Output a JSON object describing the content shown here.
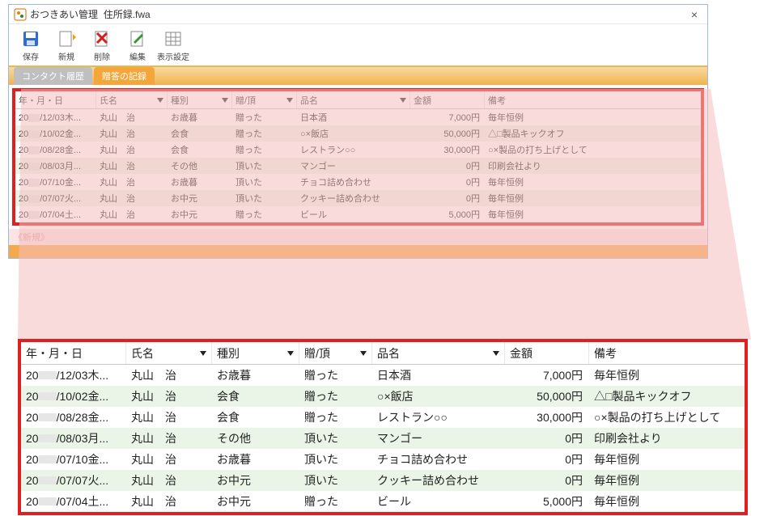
{
  "window": {
    "app_title": "おつきあい管理",
    "doc_title": "住所録.fwa"
  },
  "toolbar": {
    "save": "保存",
    "new": "新規",
    "delete": "削除",
    "edit": "編集",
    "view": "表示設定"
  },
  "tabs": {
    "contact_history": "コンタクト履歴",
    "gift_record": "贈答の記録"
  },
  "columns": {
    "date": "年・月・日",
    "name": "氏名",
    "type": "種別",
    "dir": "贈/頂",
    "item": "品名",
    "amount": "金額",
    "note": "備考"
  },
  "new_row_label": "《新規》",
  "rows": [
    {
      "date_pre": "20",
      "date_tail": "/12/03木...",
      "name": "丸山　治",
      "type": "お歳暮",
      "dir": "贈った",
      "item": "日本酒",
      "amount": "7,000円",
      "note": "毎年恒例"
    },
    {
      "date_pre": "20",
      "date_tail": "/10/02金...",
      "name": "丸山　治",
      "type": "会食",
      "dir": "贈った",
      "item": "○×飯店",
      "amount": "50,000円",
      "note": "△□製品キックオフ"
    },
    {
      "date_pre": "20",
      "date_tail": "/08/28金...",
      "name": "丸山　治",
      "type": "会食",
      "dir": "贈った",
      "item": "レストラン○○",
      "amount": "30,000円",
      "note": "○×製品の打ち上げとして"
    },
    {
      "date_pre": "20",
      "date_tail": "/08/03月...",
      "name": "丸山　治",
      "type": "その他",
      "dir": "頂いた",
      "item": "マンゴー",
      "amount": "0円",
      "note": "印刷会社より"
    },
    {
      "date_pre": "20",
      "date_tail": "/07/10金...",
      "name": "丸山　治",
      "type": "お歳暮",
      "dir": "頂いた",
      "item": "チョコ詰め合わせ",
      "amount": "0円",
      "note": "毎年恒例"
    },
    {
      "date_pre": "20",
      "date_tail": "/07/07火...",
      "name": "丸山　治",
      "type": "お中元",
      "dir": "頂いた",
      "item": "クッキー詰め合わせ",
      "amount": "0円",
      "note": "毎年恒例"
    },
    {
      "date_pre": "20",
      "date_tail": "/07/04土...",
      "name": "丸山　治",
      "type": "お中元",
      "dir": "贈った",
      "item": "ビール",
      "amount": "5,000円",
      "note": "毎年恒例"
    }
  ],
  "zoom_rows": [
    {
      "date_pre": "20",
      "date_tail": "/12/03木...",
      "name": "丸山　治",
      "type": "お歳暮",
      "dir": "贈った",
      "item": "日本酒",
      "amount": "7,000円",
      "note": "毎年恒例"
    },
    {
      "date_pre": "20",
      "date_tail": "/10/02金...",
      "name": "丸山　治",
      "type": "会食",
      "dir": "贈った",
      "item": "○×飯店",
      "amount": "50,000円",
      "note": "△□製品キックオフ"
    },
    {
      "date_pre": "20",
      "date_tail": "/08/28金...",
      "name": "丸山　治",
      "type": "会食",
      "dir": "贈った",
      "item": "レストラン○○",
      "amount": "30,000円",
      "note": "○×製品の打ち上げとして"
    },
    {
      "date_pre": "20",
      "date_tail": "/08/03月...",
      "name": "丸山　治",
      "type": "その他",
      "dir": "頂いた",
      "item": "マンゴー",
      "amount": "0円",
      "note": "印刷会社より"
    },
    {
      "date_pre": "20",
      "date_tail": "/07/10金...",
      "name": "丸山　治",
      "type": "お歳暮",
      "dir": "頂いた",
      "item": "チョコ詰め合わせ",
      "amount": "0円",
      "note": "毎年恒例"
    },
    {
      "date_pre": "20",
      "date_tail": "/07/07火...",
      "name": "丸山　治",
      "type": "お中元",
      "dir": "頂いた",
      "item": "クッキー詰め合わせ",
      "amount": "0円",
      "note": "毎年恒例"
    },
    {
      "date_pre": "20",
      "date_tail": "/07/04土...",
      "name": "丸山　治",
      "type": "お中元",
      "dir": "贈った",
      "item": "ビール",
      "amount": "5,000円",
      "note": "毎年恒例"
    }
  ],
  "style": {
    "accent_orange": "#f3a73a",
    "highlight_red": "#e02020",
    "row_alt_bg": "#eaf5e8",
    "cone_fill": "#f6bdbd"
  }
}
